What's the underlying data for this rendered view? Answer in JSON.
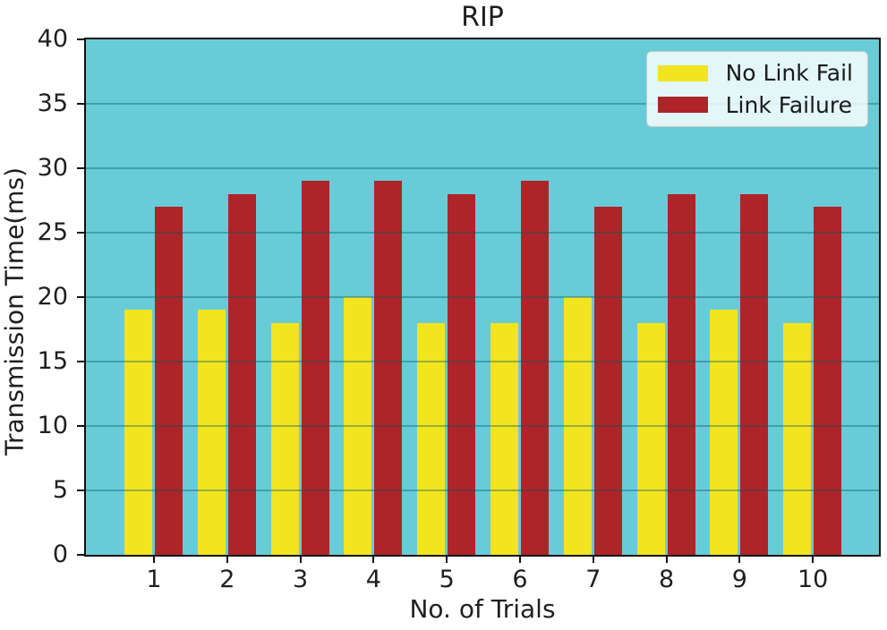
{
  "chart_data": {
    "type": "bar",
    "title": "RIP",
    "xlabel": "No. of Trials",
    "ylabel": "Transmission Time(ms)",
    "categories": [
      "1",
      "2",
      "3",
      "4",
      "5",
      "6",
      "7",
      "8",
      "9",
      "10"
    ],
    "series": [
      {
        "name": "No Link Fail",
        "color": "#f2e41f",
        "values": [
          19,
          19,
          18,
          20,
          18,
          18,
          20,
          18,
          19,
          18
        ]
      },
      {
        "name": "Link Failure",
        "color": "#ae2428",
        "values": [
          27,
          28,
          29,
          29,
          28,
          29,
          27,
          28,
          28,
          27
        ]
      }
    ],
    "ylim": [
      0,
      40
    ],
    "yticks": [
      0,
      5,
      10,
      15,
      20,
      25,
      30,
      35,
      40
    ],
    "grid": true,
    "gridlines_above_bars": true,
    "legend_position": "upper right",
    "colors": {
      "plot_background": "#67ccd8",
      "gridline": "rgba(0,90,100,0.38)",
      "axis": "#111111",
      "text": "#1f1f1f",
      "figure_background": "#ffffff"
    }
  }
}
